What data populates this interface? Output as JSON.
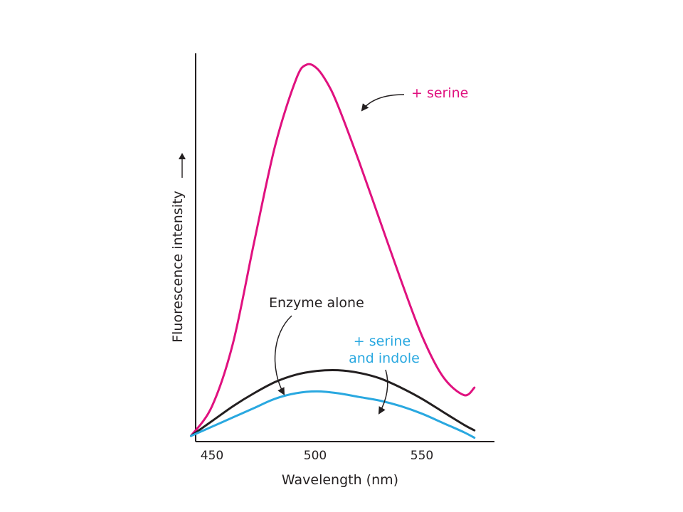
{
  "chart_data": {
    "type": "line",
    "xlabel": "Wavelength (nm)",
    "ylabel": "Fluorescence intensity",
    "x_ticks": [
      "450",
      "500",
      "550"
    ],
    "xlim": [
      440,
      582
    ],
    "ylim": [
      0,
      100
    ],
    "grid": false,
    "y_tick_labels": false,
    "series": [
      {
        "key": "serine",
        "color": "#e0117f",
        "x": [
          440,
          450,
          460,
          470,
          480,
          490,
          495,
          500,
          505,
          510,
          520,
          530,
          540,
          550,
          560,
          570,
          575
        ],
        "y": [
          0,
          8,
          25,
          52,
          78,
          96,
          100,
          99,
          95,
          89,
          74,
          58,
          42,
          27,
          16,
          11,
          13
        ]
      },
      {
        "key": "enzyme-alone",
        "color": "#231f20",
        "x": [
          440,
          450,
          460,
          470,
          480,
          490,
          500,
          510,
          520,
          530,
          540,
          550,
          560,
          570,
          575
        ],
        "y": [
          0,
          4.0,
          8.0,
          11.5,
          14.5,
          16.5,
          17.5,
          17.7,
          17.0,
          15.5,
          13.0,
          10.0,
          6.5,
          3.0,
          1.5
        ]
      },
      {
        "key": "serine-indole",
        "color": "#29a8e0",
        "x": [
          440,
          450,
          460,
          470,
          480,
          490,
          500,
          510,
          520,
          530,
          540,
          550,
          560,
          570,
          575
        ],
        "y": [
          0,
          2.5,
          5.0,
          7.5,
          10.0,
          11.5,
          12.0,
          11.5,
          10.5,
          9.5,
          8.0,
          6.0,
          3.5,
          1.0,
          -0.5
        ]
      }
    ],
    "annotations": [
      {
        "key": "serine",
        "lines": [
          "+ serine"
        ],
        "color": "#e0117f"
      },
      {
        "key": "enzyme-alone",
        "lines": [
          "Enzyme alone"
        ],
        "color": "#231f20"
      },
      {
        "key": "serine-indole",
        "lines": [
          "+ serine",
          "and indole"
        ],
        "color": "#29a8e0"
      }
    ]
  }
}
